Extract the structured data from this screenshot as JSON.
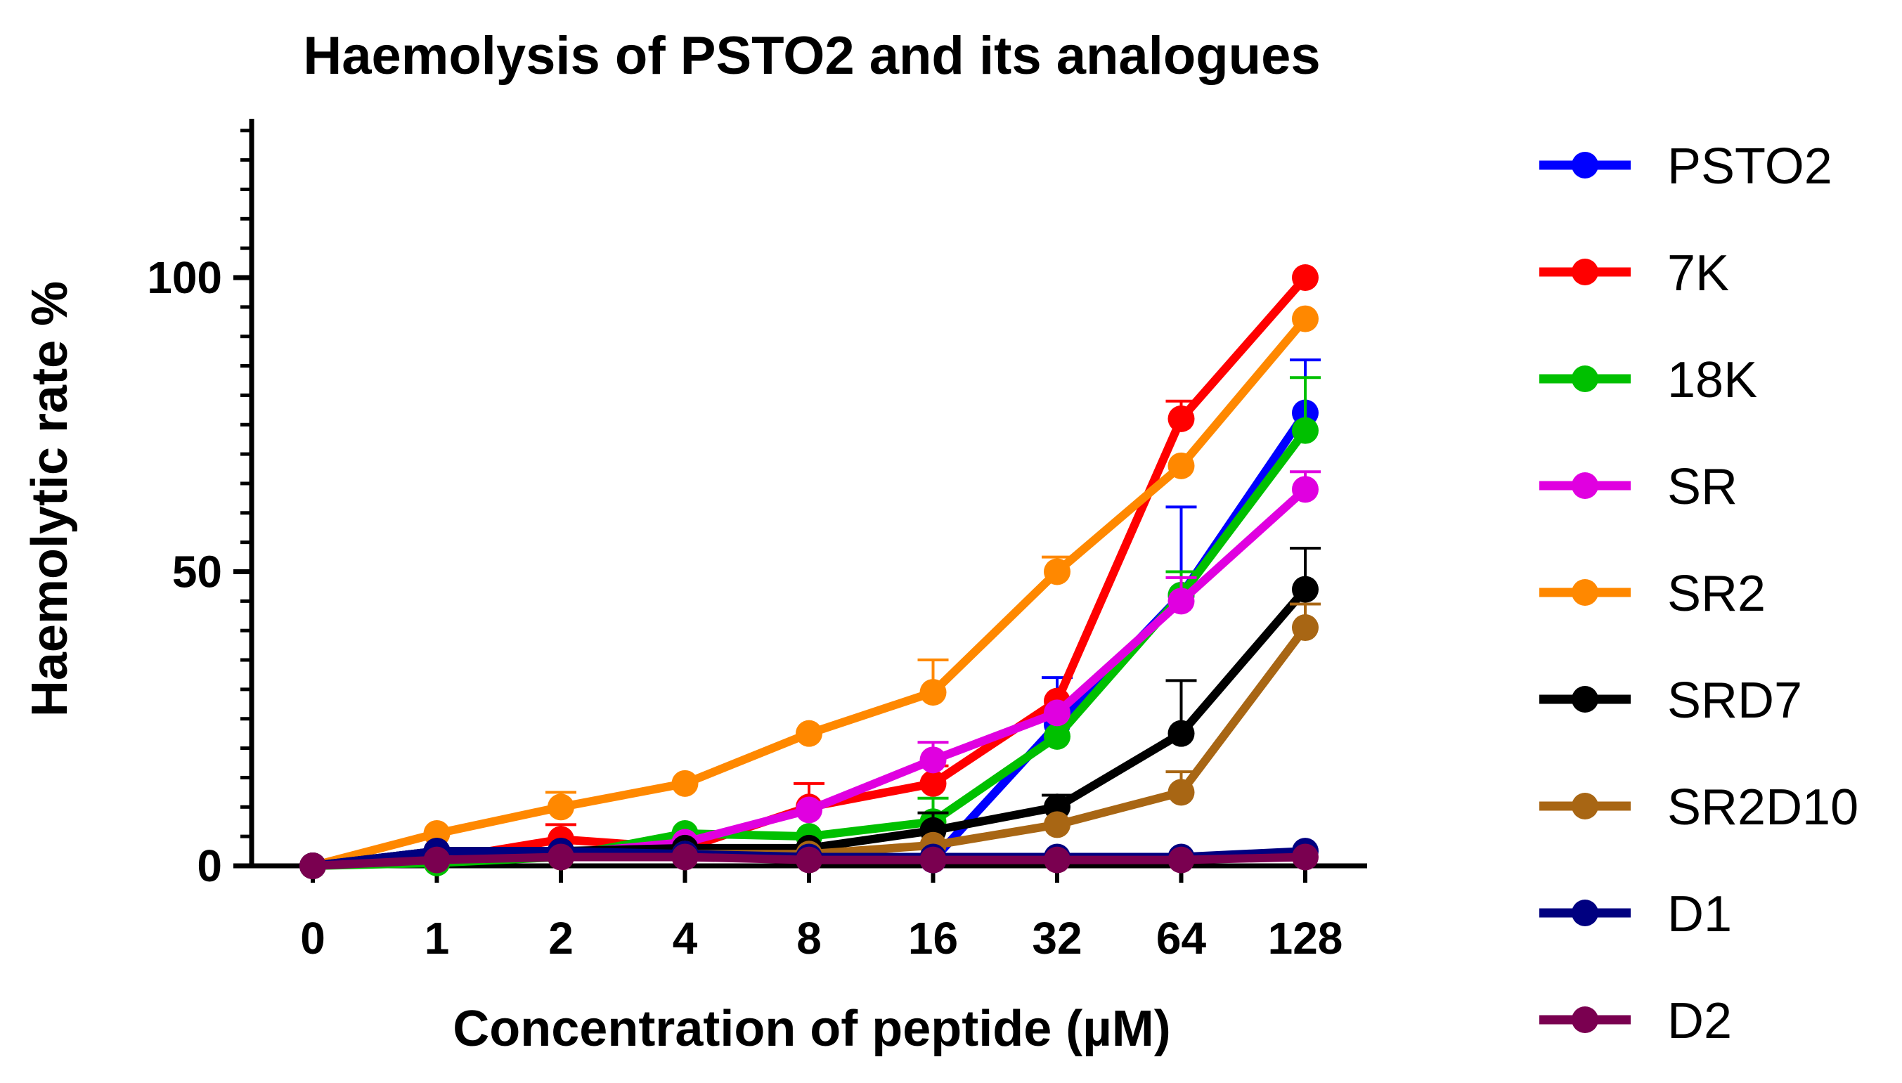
{
  "chart_data": {
    "type": "line",
    "title": "Haemolysis of PSTO2 and its analogues",
    "xlabel": "Concentration of peptide (µM)",
    "ylabel": "Haemolytic rate %",
    "categories": [
      "0",
      "1",
      "2",
      "4",
      "8",
      "16",
      "32",
      "64",
      "128"
    ],
    "ylim": [
      0,
      127
    ],
    "yticks": [
      0,
      50,
      100
    ],
    "legend_position": "right",
    "series": [
      {
        "name": "PSTO2",
        "color": "#0000ff",
        "values": [
          0,
          2.5,
          2.5,
          2.5,
          1.5,
          1,
          24,
          46,
          77
        ],
        "errors": [
          0,
          0,
          0,
          0,
          0,
          0,
          8,
          15,
          9
        ]
      },
      {
        "name": "7K",
        "color": "#ff0000",
        "values": [
          0,
          1,
          4.5,
          3,
          10,
          14,
          28,
          76,
          100
        ],
        "errors": [
          0,
          0,
          2.5,
          0,
          4,
          3,
          0,
          3,
          0
        ]
      },
      {
        "name": "18K",
        "color": "#00c000",
        "values": [
          0,
          0.5,
          1.5,
          5.5,
          5,
          7.5,
          22,
          46,
          74
        ],
        "errors": [
          0,
          0,
          0,
          0,
          0,
          4,
          0,
          4,
          9
        ]
      },
      {
        "name": "SR",
        "color": "#e000e0",
        "values": [
          0,
          1.5,
          2,
          4,
          9.5,
          18,
          26,
          45,
          64
        ],
        "errors": [
          0,
          0,
          0,
          0,
          0,
          3,
          0,
          4,
          3
        ]
      },
      {
        "name": "SR2",
        "color": "#ff8800",
        "values": [
          0,
          5.5,
          10,
          14,
          22.5,
          29.5,
          50,
          68,
          93
        ],
        "errors": [
          0,
          0,
          2.5,
          0,
          0,
          5.5,
          2.5,
          0,
          0
        ]
      },
      {
        "name": "SRD7",
        "color": "#000000",
        "values": [
          0,
          2.5,
          2.5,
          3,
          3,
          6,
          10,
          22.5,
          47
        ],
        "errors": [
          0,
          0,
          0,
          0,
          0,
          3,
          2,
          9,
          7
        ]
      },
      {
        "name": "SR2D10",
        "color": "#a86614",
        "values": [
          0,
          1.5,
          1.5,
          2,
          2,
          3.5,
          7,
          12.5,
          40.5
        ],
        "errors": [
          0,
          0,
          0,
          0,
          0,
          0,
          0,
          3.5,
          4
        ]
      },
      {
        "name": "D1",
        "color": "#000080",
        "values": [
          0,
          2.5,
          2.5,
          2,
          1.5,
          1.5,
          1.5,
          1.5,
          2.5
        ],
        "errors": [
          0,
          0,
          0,
          0,
          0,
          0,
          0,
          0,
          0
        ]
      },
      {
        "name": "D2",
        "color": "#7a0050",
        "values": [
          0,
          1,
          1.5,
          1.5,
          1,
          1,
          1,
          1,
          1.5
        ],
        "errors": [
          0,
          0,
          0,
          0,
          0,
          0,
          0,
          0,
          0
        ]
      }
    ]
  }
}
